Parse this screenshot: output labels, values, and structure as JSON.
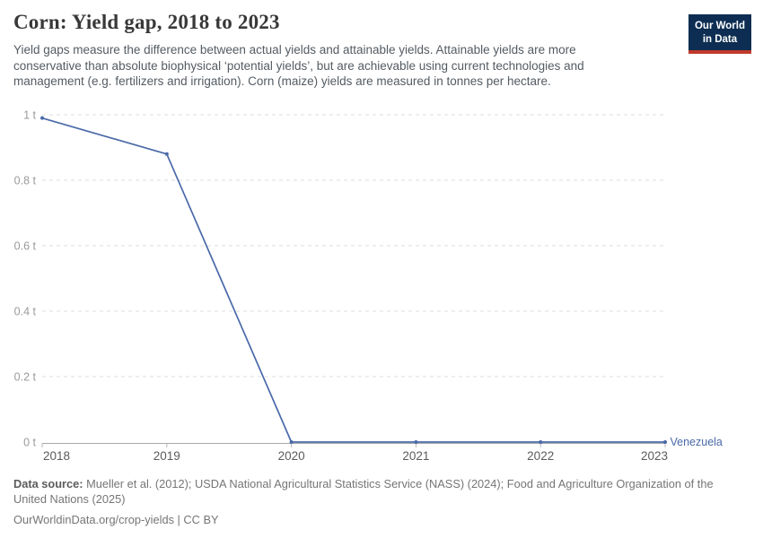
{
  "header": {
    "title": "Corn: Yield gap, 2018 to 2023",
    "subtitle": "Yield gaps measure the difference between actual yields and attainable yields. Attainable yields are more conservative than absolute biophysical ‘potential yields’, but are achievable using current technologies and management (e.g. fertilizers and irrigation). Corn (maize) yields are measured in tonnes per hectare."
  },
  "logo": {
    "line1": "Our World",
    "line2": "in Data",
    "bg_color": "#0d2e52",
    "bar_color": "#c0392b"
  },
  "chart_data": {
    "type": "line",
    "title": "Corn: Yield gap, 2018 to 2023",
    "unit": "tonnes per hectare",
    "x": [
      2018,
      2019,
      2020,
      2021,
      2022,
      2023
    ],
    "series": [
      {
        "name": "Venezuela",
        "color": "#4a69a8",
        "values": [
          0.99,
          0.88,
          0,
          0,
          0,
          0
        ]
      }
    ],
    "x_ticks": [
      "2018",
      "2019",
      "2020",
      "2021",
      "2022",
      "2023"
    ],
    "y_ticks": [
      {
        "value": 0,
        "label": "0 t"
      },
      {
        "value": 0.2,
        "label": "0.2 t"
      },
      {
        "value": 0.4,
        "label": "0.4 t"
      },
      {
        "value": 0.6,
        "label": "0.6 t"
      },
      {
        "value": 0.8,
        "label": "0.8 t"
      },
      {
        "value": 1,
        "label": "1 t"
      }
    ],
    "xlim": [
      2018,
      2023
    ],
    "ylim": [
      0,
      1
    ],
    "grid": "horizontal-dashed",
    "legend_position": "end-of-line-label",
    "colors": {
      "grid": "#dedede",
      "axis": "#a8a8a8",
      "tick": "#b5b5b5",
      "y_label": "#9a9a9a",
      "x_label": "#5b5b5b"
    }
  },
  "footer": {
    "data_source_label": "Data source:",
    "data_source_text": "Mueller et al. (2012); USDA National Agricultural Statistics Service (NASS) (2024); Food and Agriculture Organization of the United Nations (2025)",
    "attribution": "OurWorldinData.org/crop-yields | CC BY"
  }
}
